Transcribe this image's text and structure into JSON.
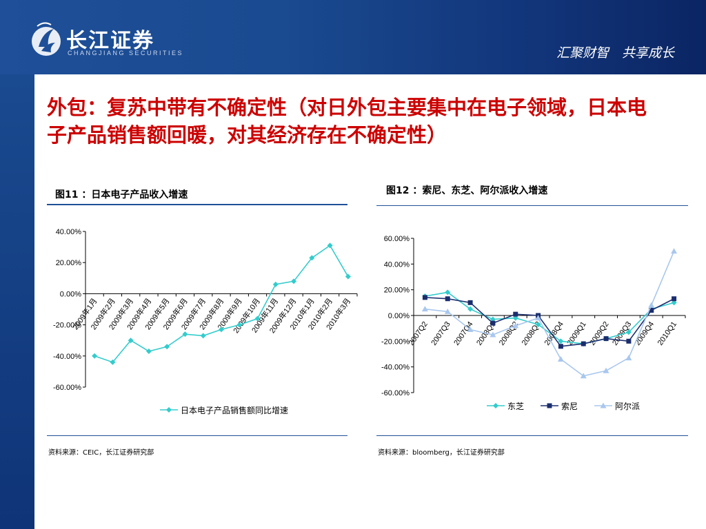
{
  "header": {
    "logo_text": "长江证券",
    "logo_subtext": "CHANGJIANG SECURITIES",
    "slogan": "汇聚财智　共享成长"
  },
  "title": "外包：复苏中带有不确定性（对日外包主要集中在电子领域，日本电子产品销售额回暖，对其经济存在不确定性）",
  "charts": {
    "left": {
      "caption": "图11 ：日本电子产品收入增速",
      "source": "资料来源：CEIC，长江证券研究部"
    },
    "right": {
      "caption": "图12 ：索尼、东芝、阿尔派收入增速",
      "source": "资料来源：bloomberg，长江证券研究部"
    }
  },
  "chart_data": [
    {
      "type": "line",
      "categories": [
        "2009年1月",
        "2009年2月",
        "2009年3月",
        "2009年4月",
        "2009年5月",
        "2009年6月",
        "2009年7月",
        "2009年8月",
        "2009年9月",
        "2009年10月",
        "2009年11月",
        "2009年12月",
        "2010年1月",
        "2010年2月",
        "2010年3月"
      ],
      "series": [
        {
          "name": "日本电子产品销售额同比增速",
          "color": "#33cccc",
          "values": [
            -40,
            -44,
            -30,
            -37,
            -34,
            -26,
            -27,
            -23,
            -20,
            -16,
            6,
            8,
            23,
            31,
            11
          ]
        }
      ],
      "yticks": [
        "40.00%",
        "20.00%",
        "0.00%",
        "-20.00%",
        "-40.00%",
        "-60.00%"
      ],
      "ylim": [
        -60,
        40
      ],
      "legend": "bottom"
    },
    {
      "type": "line",
      "categories": [
        "2007Q2",
        "2007Q3",
        "2007Q4",
        "2008Q1",
        "2008Q2",
        "2008Q3",
        "2008Q4",
        "2009Q1",
        "2009Q2",
        "2009Q3",
        "2009Q4",
        "2010Q1"
      ],
      "series": [
        {
          "name": "东芝",
          "color": "#33cccc",
          "marker": "diamond",
          "values": [
            15,
            18,
            5,
            -3,
            -2,
            -7,
            -20,
            -22,
            -18,
            -13,
            5,
            10
          ]
        },
        {
          "name": "索尼",
          "color": "#1a2e6e",
          "marker": "square",
          "values": [
            14,
            13,
            10,
            -6,
            1,
            0,
            -24,
            -22,
            -18,
            -20,
            4,
            13
          ]
        },
        {
          "name": "阿尔派",
          "color": "#a9c7ee",
          "marker": "triangle",
          "values": [
            5,
            3,
            -11,
            -15,
            -8,
            -2,
            -34,
            -47,
            -43,
            -33,
            8,
            50
          ]
        }
      ],
      "yticks": [
        "60.00%",
        "40.00%",
        "20.00%",
        "0.00%",
        "-20.00%",
        "-40.00%",
        "-60.00%"
      ],
      "ylim": [
        -60,
        60
      ],
      "legend": "bottom"
    }
  ]
}
